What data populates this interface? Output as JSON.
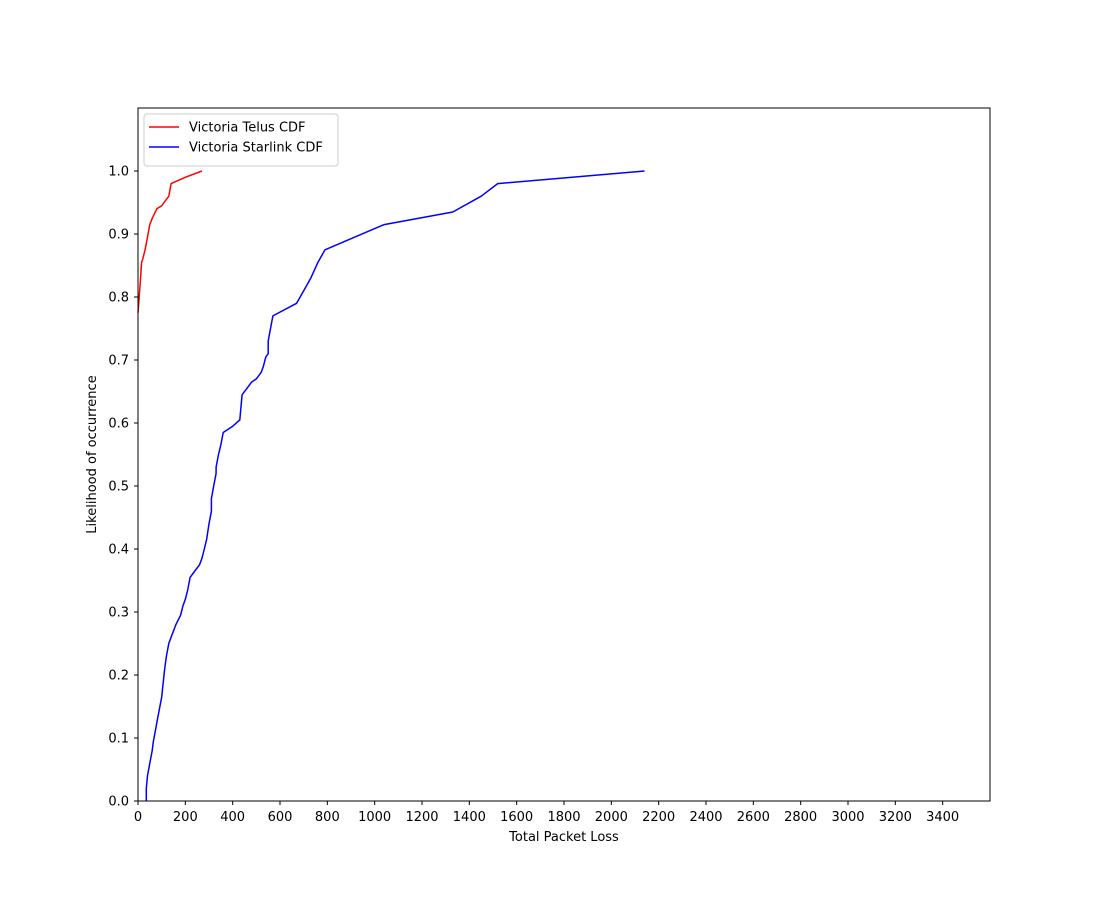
{
  "chart_data": {
    "type": "line",
    "title": "",
    "xlabel": "Total Packet Loss",
    "ylabel": "Likelihood of occurrence",
    "xlim": [
      0,
      3600
    ],
    "ylim": [
      0,
      1.1
    ],
    "x_ticks": [
      0,
      200,
      400,
      600,
      800,
      1000,
      1200,
      1400,
      1600,
      1800,
      2000,
      2200,
      2400,
      2600,
      2800,
      3000,
      3200,
      3400
    ],
    "y_ticks": [
      0.0,
      0.1,
      0.2,
      0.3,
      0.4,
      0.5,
      0.6,
      0.7,
      0.8,
      0.9,
      1.0
    ],
    "x_tick_labels": [
      "0",
      "200",
      "400",
      "600",
      "800",
      "1000",
      "1200",
      "1400",
      "1600",
      "1800",
      "2000",
      "2200",
      "2400",
      "2600",
      "2800",
      "3000",
      "3200",
      "3400"
    ],
    "y_tick_labels": [
      "0.0",
      "0.1",
      "0.2",
      "0.3",
      "0.4",
      "0.5",
      "0.6",
      "0.7",
      "0.8",
      "0.9",
      "1.0"
    ],
    "grid": false,
    "legend_position": "top-left",
    "series": [
      {
        "name": "Victoria Telus CDF",
        "color": "#ff0000",
        "x": [
          0,
          5,
          12,
          15,
          20,
          30,
          40,
          50,
          60,
          80,
          100,
          130,
          140,
          200,
          270
        ],
        "y": [
          0.775,
          0.8,
          0.835,
          0.855,
          0.86,
          0.875,
          0.895,
          0.915,
          0.925,
          0.94,
          0.945,
          0.96,
          0.98,
          0.99,
          1.0
        ]
      },
      {
        "name": "Victoria Starlink CDF",
        "color": "#0000ff",
        "x": [
          35,
          35,
          40,
          50,
          60,
          65,
          70,
          80,
          90,
          100,
          110,
          113,
          120,
          130,
          140,
          160,
          180,
          190,
          200,
          210,
          220,
          240,
          260,
          270,
          280,
          290,
          300,
          310,
          310,
          320,
          330,
          330,
          340,
          350,
          360,
          400,
          430,
          440,
          460,
          480,
          500,
          520,
          530,
          540,
          550,
          550,
          560,
          570,
          670,
          700,
          730,
          760,
          790,
          1040,
          1330,
          1450,
          1520,
          2140
        ],
        "y": [
          0.0,
          0.02,
          0.04,
          0.06,
          0.08,
          0.095,
          0.105,
          0.125,
          0.145,
          0.165,
          0.2,
          0.21,
          0.23,
          0.25,
          0.26,
          0.28,
          0.295,
          0.31,
          0.32,
          0.335,
          0.355,
          0.365,
          0.375,
          0.385,
          0.4,
          0.415,
          0.44,
          0.46,
          0.48,
          0.5,
          0.52,
          0.53,
          0.55,
          0.565,
          0.585,
          0.595,
          0.605,
          0.645,
          0.655,
          0.665,
          0.67,
          0.68,
          0.69,
          0.705,
          0.71,
          0.73,
          0.75,
          0.77,
          0.79,
          0.81,
          0.83,
          0.855,
          0.875,
          0.915,
          0.935,
          0.96,
          0.98,
          1.0
        ]
      }
    ]
  }
}
